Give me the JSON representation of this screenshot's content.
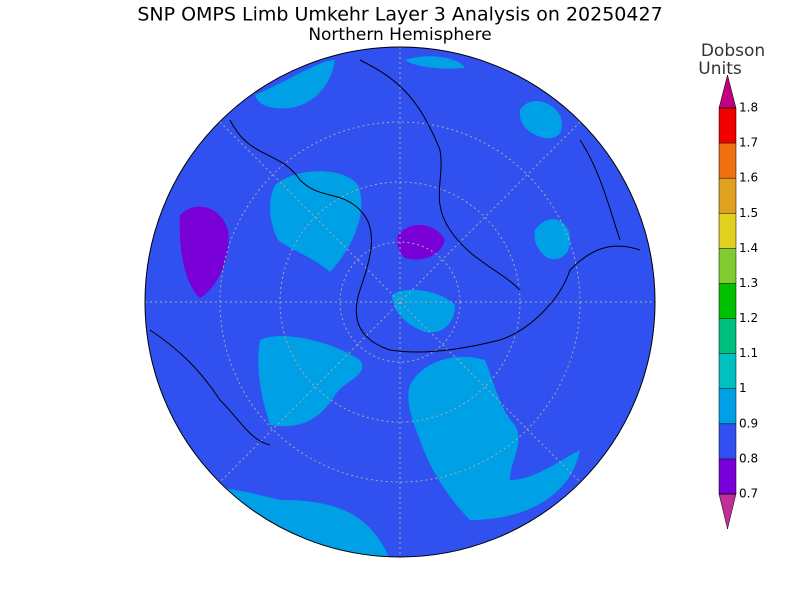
{
  "title": "SNP OMPS Limb Umkehr Layer 3 Analysis on 20250427",
  "subtitle": "Northern Hemisphere",
  "colorbar": {
    "title_lines": [
      "Dobson",
      "Units"
    ],
    "ticks": [
      0.7,
      0.8,
      0.9,
      1,
      1.1,
      1.2,
      1.3,
      1.4,
      1.5,
      1.6,
      1.7,
      1.8
    ],
    "colors": [
      "#7a00d8",
      "#3050f0",
      "#00a0e6",
      "#00c0c0",
      "#00c080",
      "#00c000",
      "#80cc30",
      "#e0d020",
      "#e0a020",
      "#f07010",
      "#f00000"
    ],
    "under_color": "#c03098",
    "over_color": "#c00080"
  }
}
